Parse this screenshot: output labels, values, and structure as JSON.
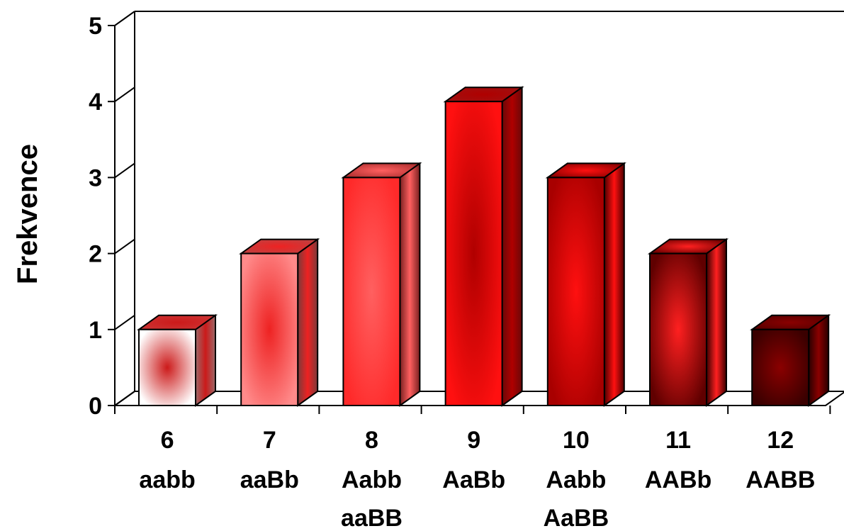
{
  "chart_data": {
    "type": "bar",
    "categories": [
      "6",
      "7",
      "8",
      "9",
      "10",
      "11",
      "12"
    ],
    "category_genotypes": [
      [
        "aabb"
      ],
      [
        "aaBb"
      ],
      [
        "Aabb",
        "aaBB"
      ],
      [
        "AaBb"
      ],
      [
        "Aabb",
        "AaBB"
      ],
      [
        "AABb"
      ],
      [
        "AABB"
      ]
    ],
    "values": [
      1,
      2,
      3,
      4,
      3,
      2,
      1
    ],
    "xlabel": "",
    "ylabel": "Frekvence",
    "ylim": [
      0,
      5
    ],
    "yticks": [
      "0",
      "1",
      "2",
      "3",
      "4",
      "5"
    ],
    "style": "3d-bar",
    "grid": false,
    "bar_colors": [
      {
        "face": "#ffffff",
        "mid": "#cc1a1a",
        "side": "#9a6868",
        "top": "#cc3333"
      },
      {
        "face": "#ff8a8a",
        "mid": "#ee2222",
        "side": "#7a3a3a",
        "top": "#c04040"
      },
      {
        "face": "#ff2a2a",
        "mid": "#ff6060",
        "side": "#7a2020",
        "top": "#b03030"
      },
      {
        "face": "#ff1010",
        "mid": "#b00000",
        "side": "#6a0808",
        "top": "#a01010"
      },
      {
        "face": "#a80000",
        "mid": "#ff1010",
        "side": "#500000",
        "top": "#8a0000"
      },
      {
        "face": "#600000",
        "mid": "#ff2020",
        "side": "#3a0000",
        "top": "#700000"
      },
      {
        "face": "#3a0000",
        "mid": "#8a0000",
        "side": "#2a0000",
        "top": "#5a0000"
      }
    ]
  }
}
